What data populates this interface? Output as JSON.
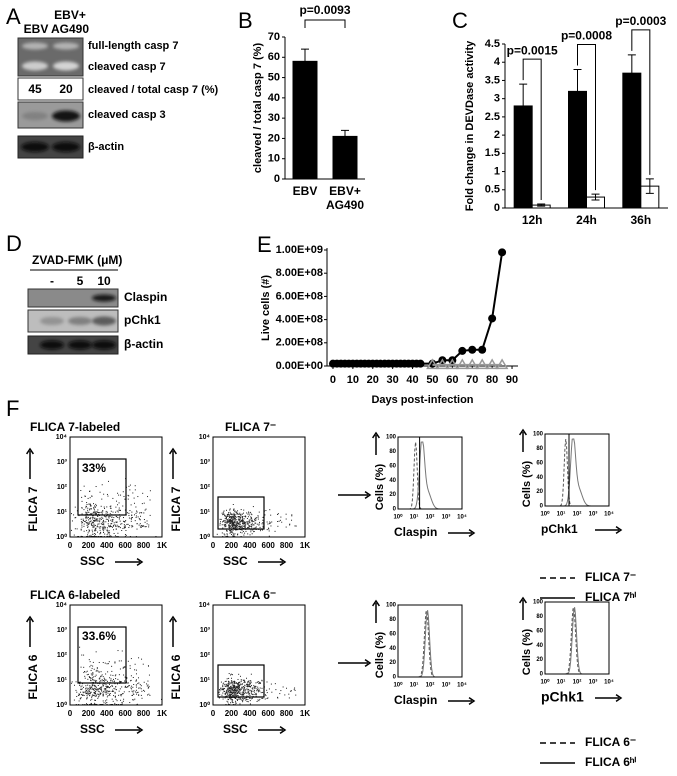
{
  "panel_labels": [
    "A",
    "B",
    "C",
    "D",
    "E",
    "F"
  ],
  "panel_a": {
    "lanes": [
      "EBV",
      "EBV+ AG490"
    ],
    "rows": [
      "full-length casp 7",
      "cleaved casp 7",
      "cleaved / total casp 7 (%)",
      "cleaved casp 3",
      "β-actin"
    ],
    "ratios": [
      45,
      20
    ]
  },
  "panel_d": {
    "title": "ZVAD-FMK  (μM)",
    "lanes": [
      "-",
      "5",
      "10"
    ],
    "rows": [
      "Claspin",
      "pChk1",
      "β-actin"
    ]
  },
  "chart_data": [
    {
      "type": "bar",
      "y_label": "cleaved / total casp 7 (%)",
      "categories": [
        "EBV",
        "EBV+ AG490"
      ],
      "values": [
        58,
        21
      ],
      "errors": [
        6,
        3
      ],
      "color": "#000000",
      "ylim": [
        0,
        70
      ],
      "yticks": [
        0,
        10,
        20,
        30,
        40,
        50,
        60,
        70
      ],
      "annotation": "p=0.0093"
    },
    {
      "type": "bar",
      "y_label": "Fold change in DEVDase  activity",
      "categories": [
        "12h",
        "24h",
        "36h"
      ],
      "series": [
        {
          "color": "#000000",
          "values": [
            2.8,
            3.2,
            3.7
          ],
          "errors": [
            0.6,
            0.6,
            0.5
          ]
        },
        {
          "color": "#ffffff",
          "values": [
            0.08,
            0.3,
            0.6
          ],
          "errors": [
            0.03,
            0.08,
            0.2
          ]
        }
      ],
      "ylim": [
        0,
        4.5
      ],
      "yticks": [
        0,
        0.5,
        1,
        1.5,
        2,
        2.5,
        3,
        3.5,
        4,
        4.5
      ],
      "annotations": [
        "p=0.0015",
        "p=0.0008",
        "p=0.0003"
      ]
    },
    {
      "type": "line",
      "y_label": "Live cells (#)",
      "x_label": "Days post-infection",
      "xlim": [
        -3,
        93
      ],
      "xticks": [
        0,
        10,
        20,
        30,
        40,
        50,
        60,
        70,
        80,
        90
      ],
      "ylim": [
        0,
        1000000000
      ],
      "yticks": [
        {
          "value": 0,
          "label": "0.00E+00"
        },
        {
          "value": 200000000,
          "label": "2.00E+08"
        },
        {
          "value": 400000000,
          "label": "4.00E+08"
        },
        {
          "value": 600000000,
          "label": "6.00E+08"
        },
        {
          "value": 800000000,
          "label": "8.00E+08"
        },
        {
          "value": 1000000000,
          "label": "1.00E+09"
        }
      ],
      "series": [
        {
          "color": "#000000",
          "marker": "circle",
          "x": [
            0,
            2,
            4,
            6,
            8,
            10,
            12,
            14,
            16,
            18,
            20,
            22,
            24,
            26,
            28,
            30,
            32,
            34,
            36,
            38,
            40,
            42,
            44,
            50,
            55,
            60,
            65,
            70,
            75,
            80,
            85
          ],
          "values": [
            20000000,
            20000000,
            20000000,
            20000000,
            20000000,
            20000000,
            20000000,
            20000000,
            20000000,
            20000000,
            20000000,
            20000000,
            20000000,
            20000000,
            20000000,
            20000000,
            20000000,
            20000000,
            20000000,
            20000000,
            20000000,
            20000000,
            20000000,
            20000000,
            50000000,
            50000000,
            130000000,
            140000000,
            140000000,
            410000000,
            980000000
          ]
        },
        {
          "color": "#999999",
          "marker": "open-triangle",
          "x": [
            50,
            55,
            60,
            65,
            70,
            75,
            80,
            85
          ],
          "values": [
            10000000,
            10000000,
            10000000,
            10000000,
            10000000,
            10000000,
            10000000,
            10000000
          ]
        }
      ]
    }
  ],
  "panel_f": {
    "log_ticks": [
      "10⁰",
      "10¹",
      "10²",
      "10³",
      "10⁴"
    ],
    "ssc_ticks": [
      "0",
      "200",
      "400",
      "600",
      "800",
      "1K"
    ],
    "hist_yticks": [
      "0",
      "20",
      "40",
      "60",
      "80",
      "100"
    ],
    "rows": [
      {
        "dot_plots": [
          {
            "title": "FLICA 7-labeled",
            "gate": "33%",
            "y_label": "FLICA 7",
            "x_label": "SSC"
          },
          {
            "title": "FLICA 7⁻",
            "y_label": "FLICA 7",
            "x_label": "SSC"
          }
        ],
        "histograms": [
          {
            "x_label": "Claspin",
            "y_label": "Cells (%)"
          },
          {
            "x_label": "pChk1",
            "y_label": "Cells (%)"
          }
        ],
        "legend": [
          "FLICA 7⁻",
          "FLICA 7ʰⁱ"
        ]
      },
      {
        "dot_plots": [
          {
            "title": "FLICA 6-labeled",
            "gate": "33.6%",
            "y_label": "FLICA 6",
            "x_label": "SSC"
          },
          {
            "title": "FLICA 6⁻",
            "y_label": "FLICA 6",
            "x_label": "SSC"
          }
        ],
        "histograms": [
          {
            "x_label": "Claspin",
            "y_label": "Cells (%)"
          },
          {
            "x_label": "pChk1",
            "y_label": "Cells (%)"
          }
        ],
        "legend": [
          "FLICA 6⁻",
          "FLICA 6ʰⁱ"
        ]
      }
    ]
  }
}
